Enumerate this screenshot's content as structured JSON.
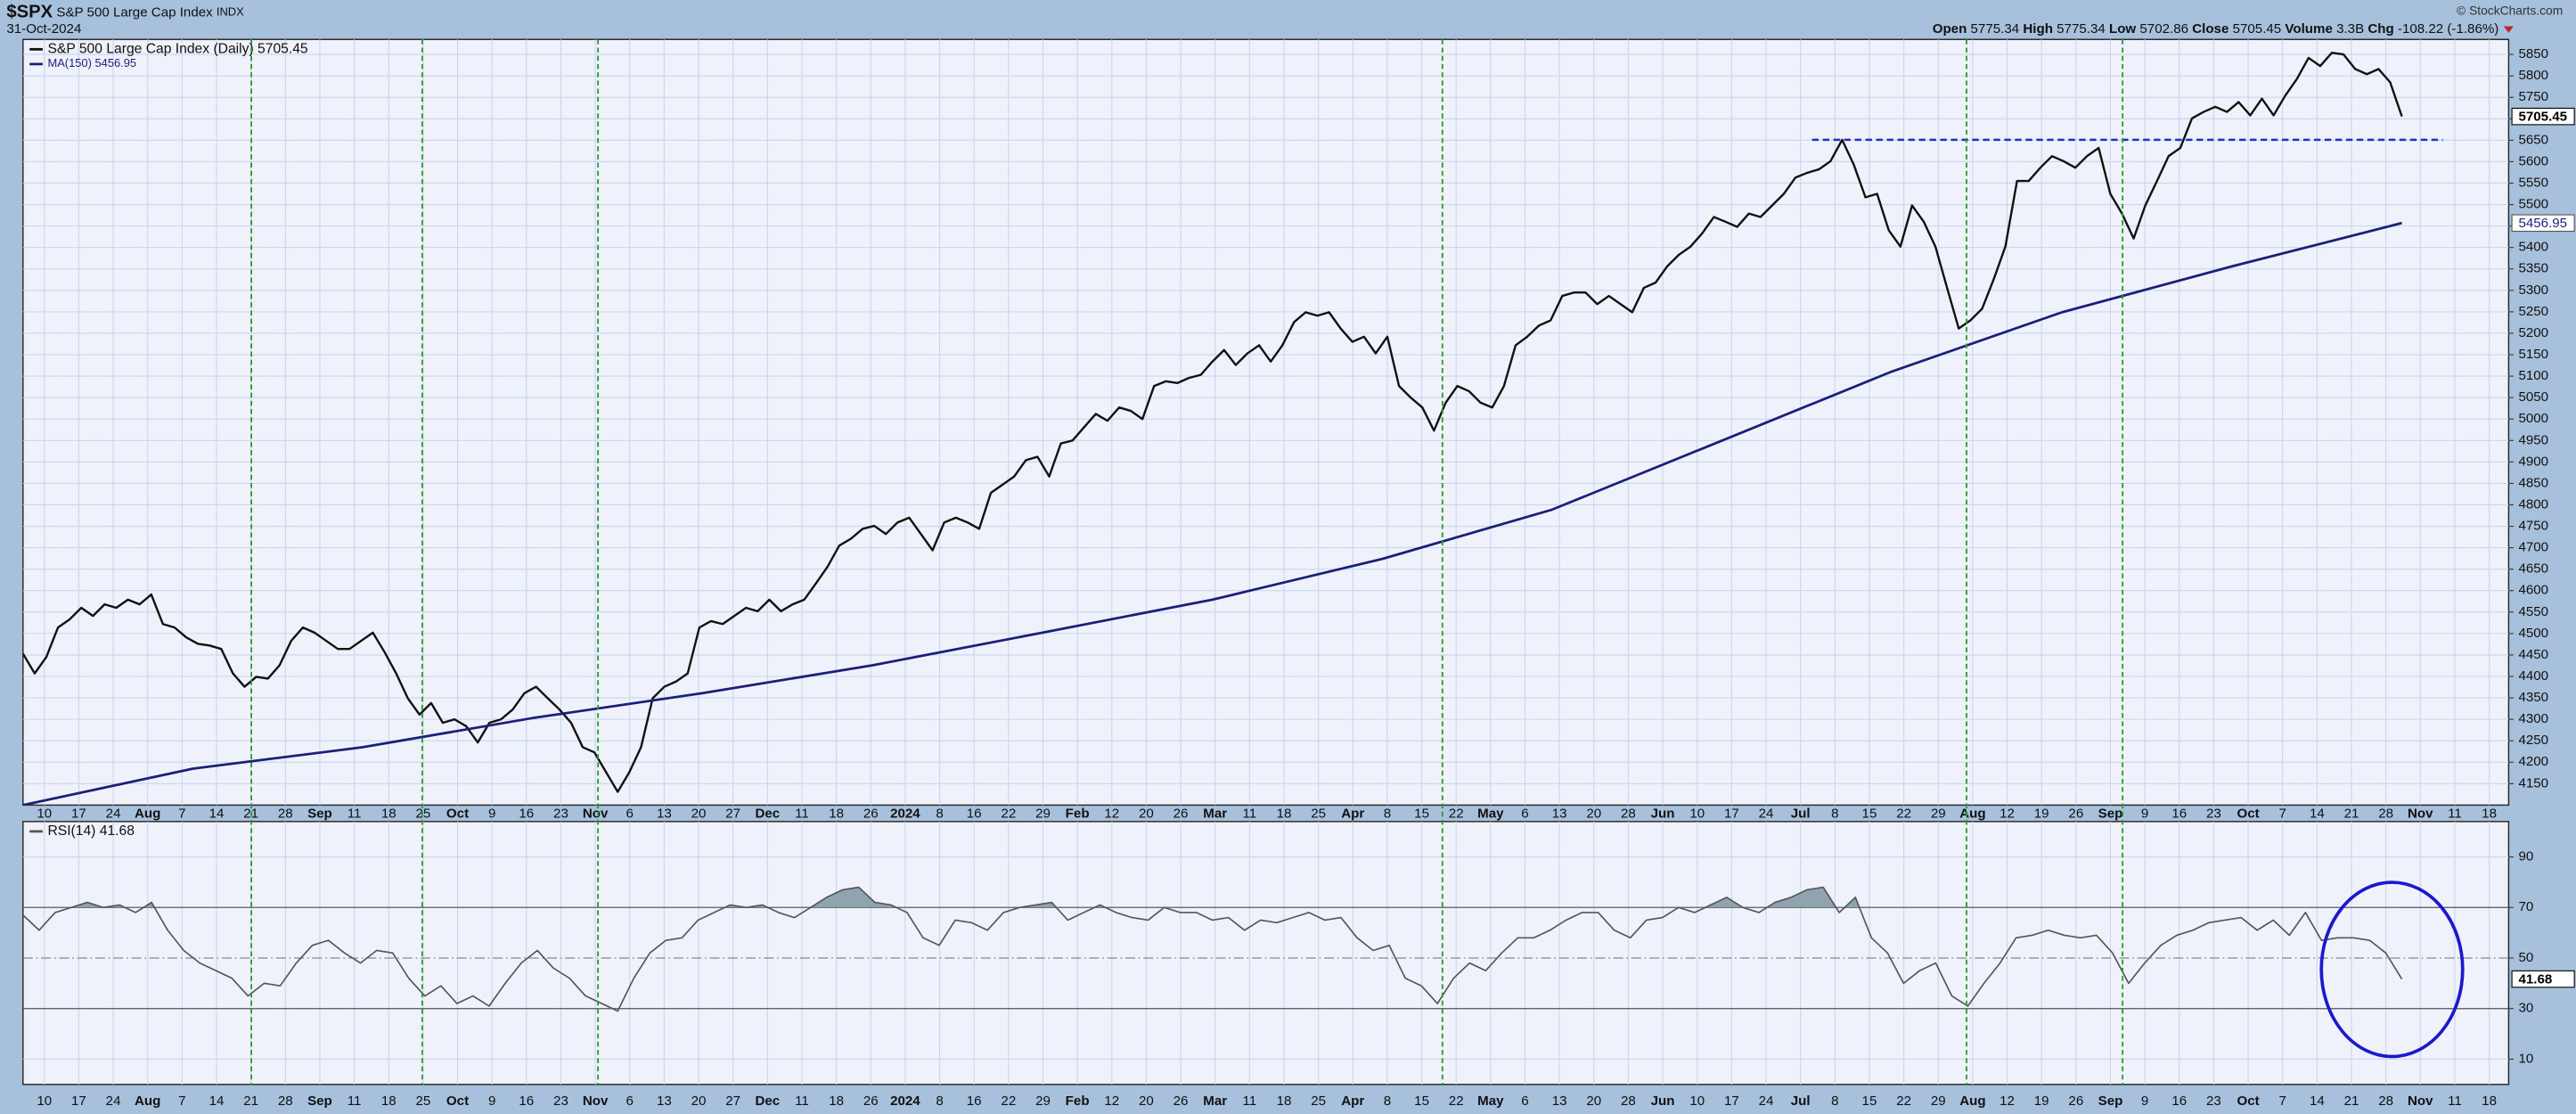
{
  "header": {
    "symbol": "$SPX",
    "name": "S&P 500 Large Cap Index",
    "exchange": "INDX",
    "date": "31-Oct-2024",
    "copyright": "© StockCharts.com",
    "quote": [
      {
        "label": "Open",
        "value": 5775.34
      },
      {
        "label": "High",
        "value": 5775.34
      },
      {
        "label": "Low",
        "value": 5702.86
      },
      {
        "label": "Close",
        "value": 5705.45
      },
      {
        "label": "Volume",
        "value": "3.3B"
      },
      {
        "label": "Chg",
        "value": "-108.22 (-1.86%)"
      }
    ]
  },
  "chart_data": [
    {
      "type": "line",
      "ylim": [
        4100,
        5885
      ],
      "yticks": [
        4150,
        4200,
        4250,
        4300,
        4350,
        4400,
        4450,
        4500,
        4550,
        4600,
        4650,
        4700,
        4750,
        4800,
        4850,
        4900,
        4950,
        5000,
        5050,
        5100,
        5150,
        5200,
        5250,
        5300,
        5350,
        5400,
        5450,
        5500,
        5550,
        5600,
        5650,
        5700,
        5750,
        5800,
        5850
      ],
      "grid": true,
      "x_tick_labels": [
        "10",
        "17",
        "24",
        "Aug",
        "7",
        "14",
        "21",
        "28",
        "Sep",
        "11",
        "18",
        "25",
        "Oct",
        "9",
        "16",
        "23",
        "Nov",
        "6",
        "13",
        "20",
        "27",
        "Dec",
        "11",
        "18",
        "26",
        "2024",
        "8",
        "16",
        "22",
        "29",
        "Feb",
        "12",
        "20",
        "26",
        "Mar",
        "11",
        "18",
        "25",
        "Apr",
        "8",
        "15",
        "22",
        "May",
        "6",
        "13",
        "20",
        "28",
        "Jun",
        "10",
        "17",
        "24",
        "Jul",
        "8",
        "15",
        "22",
        "29",
        "Aug",
        "12",
        "19",
        "26",
        "Sep",
        "9",
        "16",
        "23",
        "Oct",
        "7",
        "14",
        "21",
        "28",
        "Nov",
        "11",
        "18"
      ],
      "hlines": [
        {
          "value": 5651,
          "color": "#2233bb"
        }
      ],
      "series": [
        {
          "name": "S&P 500 Large Cap Index (Daily)",
          "color": "#111111",
          "values": [
            4453,
            4407,
            4445,
            4514,
            4533,
            4560,
            4541,
            4568,
            4560,
            4579,
            4568,
            4591,
            4522,
            4514,
            4491,
            4476,
            4472,
            4464,
            4407,
            4376,
            4399,
            4395,
            4426,
            4483,
            4514,
            4502,
            4483,
            4464,
            4464,
            4483,
            4502,
            4457,
            4407,
            4349,
            4311,
            4338,
            4292,
            4300,
            4284,
            4246,
            4292,
            4300,
            4323,
            4361,
            4376,
            4349,
            4323,
            4292,
            4235,
            4223,
            4177,
            4131,
            4177,
            4235,
            4349,
            4376,
            4388,
            4407,
            4514,
            4529,
            4522,
            4541,
            4560,
            4552,
            4579,
            4552,
            4568,
            4579,
            4617,
            4656,
            4705,
            4721,
            4744,
            4751,
            4732,
            4759,
            4770,
            4732,
            4694,
            4759,
            4770,
            4759,
            4744,
            4828,
            4847,
            4866,
            4904,
            4912,
            4866,
            4943,
            4950,
            4981,
            5012,
            4996,
            5027,
            5019,
            5000,
            5077,
            5088,
            5084,
            5096,
            5103,
            5134,
            5161,
            5126,
            5153,
            5172,
            5134,
            5172,
            5226,
            5249,
            5241,
            5249,
            5211,
            5180,
            5192,
            5153,
            5192,
            5077,
            5050,
            5027,
            4973,
            5038,
            5077,
            5065,
            5038,
            5027,
            5077,
            5172,
            5192,
            5218,
            5230,
            5287,
            5295,
            5295,
            5268,
            5287,
            5268,
            5249,
            5306,
            5318,
            5356,
            5383,
            5402,
            5433,
            5471,
            5460,
            5448,
            5479,
            5471,
            5498,
            5525,
            5563,
            5574,
            5582,
            5601,
            5651,
            5593,
            5517,
            5525,
            5440,
            5402,
            5498,
            5460,
            5402,
            5306,
            5211,
            5230,
            5257,
            5326,
            5402,
            5555,
            5555,
            5586,
            5613,
            5601,
            5586,
            5613,
            5632,
            5525,
            5479,
            5421,
            5498,
            5555,
            5613,
            5632,
            5701,
            5716,
            5728,
            5716,
            5739,
            5708,
            5747,
            5708,
            5754,
            5793,
            5842,
            5823,
            5854,
            5850,
            5816,
            5804,
            5816,
            5785,
            5705.45
          ]
        },
        {
          "name": "MA(150)",
          "color": "#1c1f7a",
          "values": [
            4100,
            4185,
            4235,
            4303,
            4361,
            4426,
            4502,
            4579,
            4674,
            4789,
            4950,
            5111,
            5249,
            5356,
            5456.95
          ]
        }
      ]
    },
    {
      "type": "line",
      "ylim": [
        0,
        104
      ],
      "yticks": [
        10,
        30,
        50,
        70,
        90
      ],
      "grid": true,
      "overbought": 70,
      "x_tick_labels": [
        "10",
        "17",
        "24",
        "Aug",
        "7",
        "14",
        "21",
        "28",
        "Sep",
        "11",
        "18",
        "25",
        "Oct",
        "9",
        "16",
        "23",
        "Nov",
        "6",
        "13",
        "20",
        "27",
        "Dec",
        "11",
        "18",
        "26",
        "2024",
        "8",
        "16",
        "22",
        "29",
        "Feb",
        "12",
        "20",
        "26",
        "Mar",
        "11",
        "18",
        "25",
        "Apr",
        "8",
        "15",
        "22",
        "May",
        "6",
        "13",
        "20",
        "28",
        "Jun",
        "10",
        "17",
        "24",
        "Jul",
        "8",
        "15",
        "22",
        "29",
        "Aug",
        "12",
        "19",
        "26",
        "Sep",
        "9",
        "16",
        "23",
        "Oct",
        "7",
        "14",
        "21",
        "28",
        "Nov",
        "11",
        "18"
      ],
      "hlines": [
        {
          "value": 70,
          "style": "solid"
        },
        {
          "value": 50,
          "style": "dashdot"
        },
        {
          "value": 30,
          "style": "solid"
        }
      ],
      "series": [
        {
          "name": "RSI(14)",
          "color": "#555555",
          "values": [
            67,
            61,
            68,
            70,
            72,
            70,
            71,
            68,
            72,
            61,
            53,
            48,
            45,
            42,
            35,
            40,
            39,
            48,
            55,
            57,
            52,
            48,
            53,
            52,
            42,
            35,
            39,
            32,
            35,
            31,
            40,
            48,
            53,
            46,
            42,
            35,
            32,
            29,
            42,
            52,
            57,
            58,
            65,
            68,
            71,
            70,
            71,
            68,
            66,
            70,
            74,
            77,
            78,
            72,
            71,
            68,
            58,
            55,
            65,
            64,
            61,
            68,
            70,
            71,
            72,
            65,
            68,
            71,
            68,
            66,
            65,
            70,
            68,
            68,
            65,
            66,
            61,
            65,
            64,
            66,
            68,
            65,
            66,
            58,
            53,
            55,
            42,
            39,
            32,
            42,
            48,
            45,
            52,
            58,
            58,
            61,
            65,
            68,
            68,
            61,
            58,
            65,
            66,
            70,
            68,
            71,
            74,
            70,
            68,
            72,
            74,
            77,
            78,
            68,
            74,
            58,
            52,
            40,
            45,
            48,
            35,
            31,
            40,
            48,
            58,
            59,
            61,
            59,
            58,
            59,
            52,
            40,
            48,
            55,
            59,
            61,
            64,
            65,
            66,
            61,
            65,
            59,
            68,
            57,
            58,
            58,
            57,
            52,
            41.68
          ]
        }
      ]
    }
  ]
}
